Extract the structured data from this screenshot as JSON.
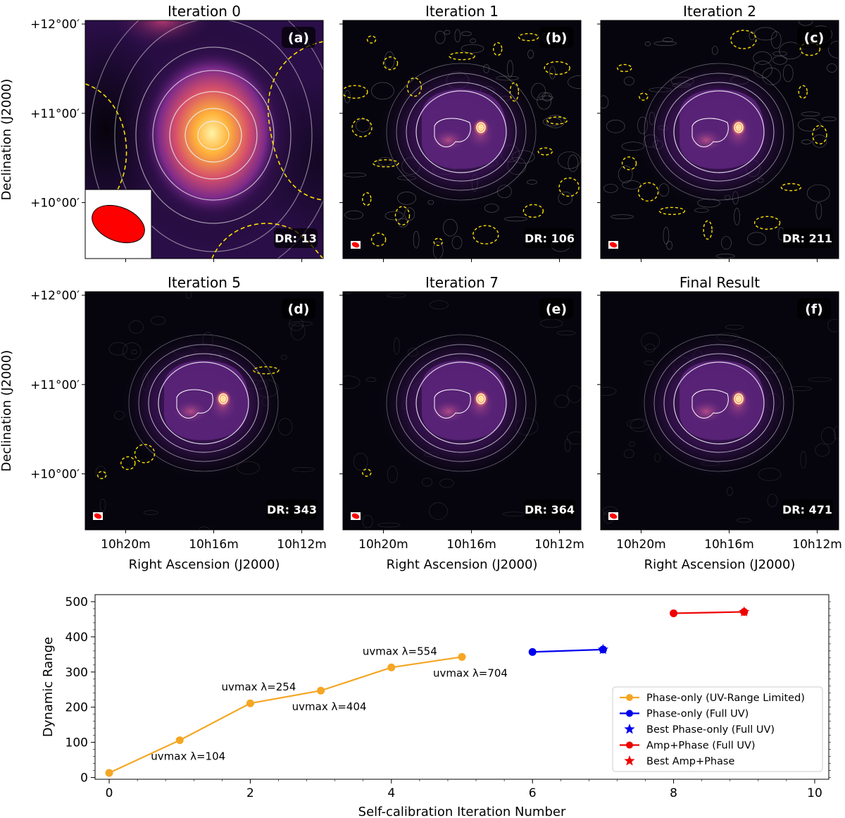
{
  "figure": {
    "panel_labels": [
      "(a)",
      "(b)",
      "(c)",
      "(d)",
      "(e)",
      "(f)"
    ],
    "colors": {
      "phase_only_limited": "#f5a623",
      "phase_only_full": "#0000ee",
      "amp_phase": "#ee0000",
      "negative_contour": "#ffe000",
      "beam": "#ff0000"
    }
  },
  "chart_data": [
    {
      "type": "heatmap",
      "label": "(a)",
      "title": "Iteration 0",
      "dr_text": "DR: 13",
      "xlabel": "Right Ascension (J2000)",
      "ylabel": "Declination (J2000)",
      "xticks": [
        "10h20m",
        "10h16m",
        "10h12m"
      ],
      "yticks": [
        "+12°00′",
        "+11°00′",
        "+10°00′"
      ]
    },
    {
      "type": "heatmap",
      "label": "(b)",
      "title": "Iteration 1",
      "dr_text": "DR: 106",
      "xlabel": "Right Ascension (J2000)",
      "ylabel": "Declination (J2000)",
      "xticks": [
        "10h20m",
        "10h16m",
        "10h12m"
      ],
      "yticks": [
        "+12°00′",
        "+11°00′",
        "+10°00′"
      ]
    },
    {
      "type": "heatmap",
      "label": "(c)",
      "title": "Iteration 2",
      "dr_text": "DR: 211",
      "xlabel": "Right Ascension (J2000)",
      "ylabel": "Declination (J2000)",
      "xticks": [
        "10h20m",
        "10h16m",
        "10h12m"
      ],
      "yticks": [
        "+12°00′",
        "+11°00′",
        "+10°00′"
      ]
    },
    {
      "type": "heatmap",
      "label": "(d)",
      "title": "Iteration 5",
      "dr_text": "DR: 343",
      "xlabel": "Right Ascension (J2000)",
      "ylabel": "Declination (J2000)",
      "xticks": [
        "10h20m",
        "10h16m",
        "10h12m"
      ],
      "yticks": [
        "+12°00′",
        "+11°00′",
        "+10°00′"
      ]
    },
    {
      "type": "heatmap",
      "label": "(e)",
      "title": "Iteration 7",
      "dr_text": "DR: 364",
      "xlabel": "Right Ascension (J2000)",
      "ylabel": "Declination (J2000)",
      "xticks": [
        "10h20m",
        "10h16m",
        "10h12m"
      ],
      "yticks": [
        "+12°00′",
        "+11°00′",
        "+10°00′"
      ]
    },
    {
      "type": "heatmap",
      "label": "(f)",
      "title": "Final Result",
      "dr_text": "DR: 471",
      "xlabel": "Right Ascension (J2000)",
      "ylabel": "Declination (J2000)",
      "xticks": [
        "10h20m",
        "10h16m",
        "10h12m"
      ],
      "yticks": [
        "+12°00′",
        "+11°00′",
        "+10°00′"
      ]
    },
    {
      "type": "line",
      "title": "",
      "xlabel": "Self-calibration Iteration Number",
      "ylabel": "Dynamic Range",
      "xlim": [
        -0.2,
        10.2
      ],
      "ylim": [
        -5,
        520
      ],
      "xticks": [
        0,
        2,
        4,
        6,
        8,
        10
      ],
      "yticks": [
        0,
        100,
        200,
        300,
        400,
        500
      ],
      "series": [
        {
          "name": "Phase-only (UV-Range Limited)",
          "color": "#f5a623",
          "marker": "circle",
          "x": [
            0,
            1,
            2,
            3,
            4,
            5
          ],
          "y": [
            13,
            106,
            211,
            247,
            313,
            343
          ]
        },
        {
          "name": "Phase-only (Full UV)",
          "color": "#0000ee",
          "marker": "circle",
          "x": [
            6,
            7
          ],
          "y": [
            357,
            364
          ]
        },
        {
          "name": "Best Phase-only (Full UV)",
          "color": "#0000ee",
          "marker": "star",
          "x": [
            7
          ],
          "y": [
            364
          ]
        },
        {
          "name": "Amp+Phase (Full UV)",
          "color": "#ee0000",
          "marker": "circle",
          "x": [
            8,
            9
          ],
          "y": [
            467,
            471
          ]
        },
        {
          "name": "Best Amp+Phase",
          "color": "#ee0000",
          "marker": "star",
          "x": [
            9
          ],
          "y": [
            471
          ]
        }
      ],
      "annotations": [
        {
          "text": "uvmax λ=104",
          "x": 1,
          "y": 106,
          "pos": "below"
        },
        {
          "text": "uvmax λ=254",
          "x": 2,
          "y": 211,
          "pos": "above"
        },
        {
          "text": "uvmax λ=404",
          "x": 3,
          "y": 247,
          "pos": "below"
        },
        {
          "text": "uvmax λ=554",
          "x": 4,
          "y": 313,
          "pos": "above"
        },
        {
          "text": "uvmax λ=704",
          "x": 5,
          "y": 343,
          "pos": "below"
        }
      ],
      "legend": "bottom-right"
    }
  ]
}
